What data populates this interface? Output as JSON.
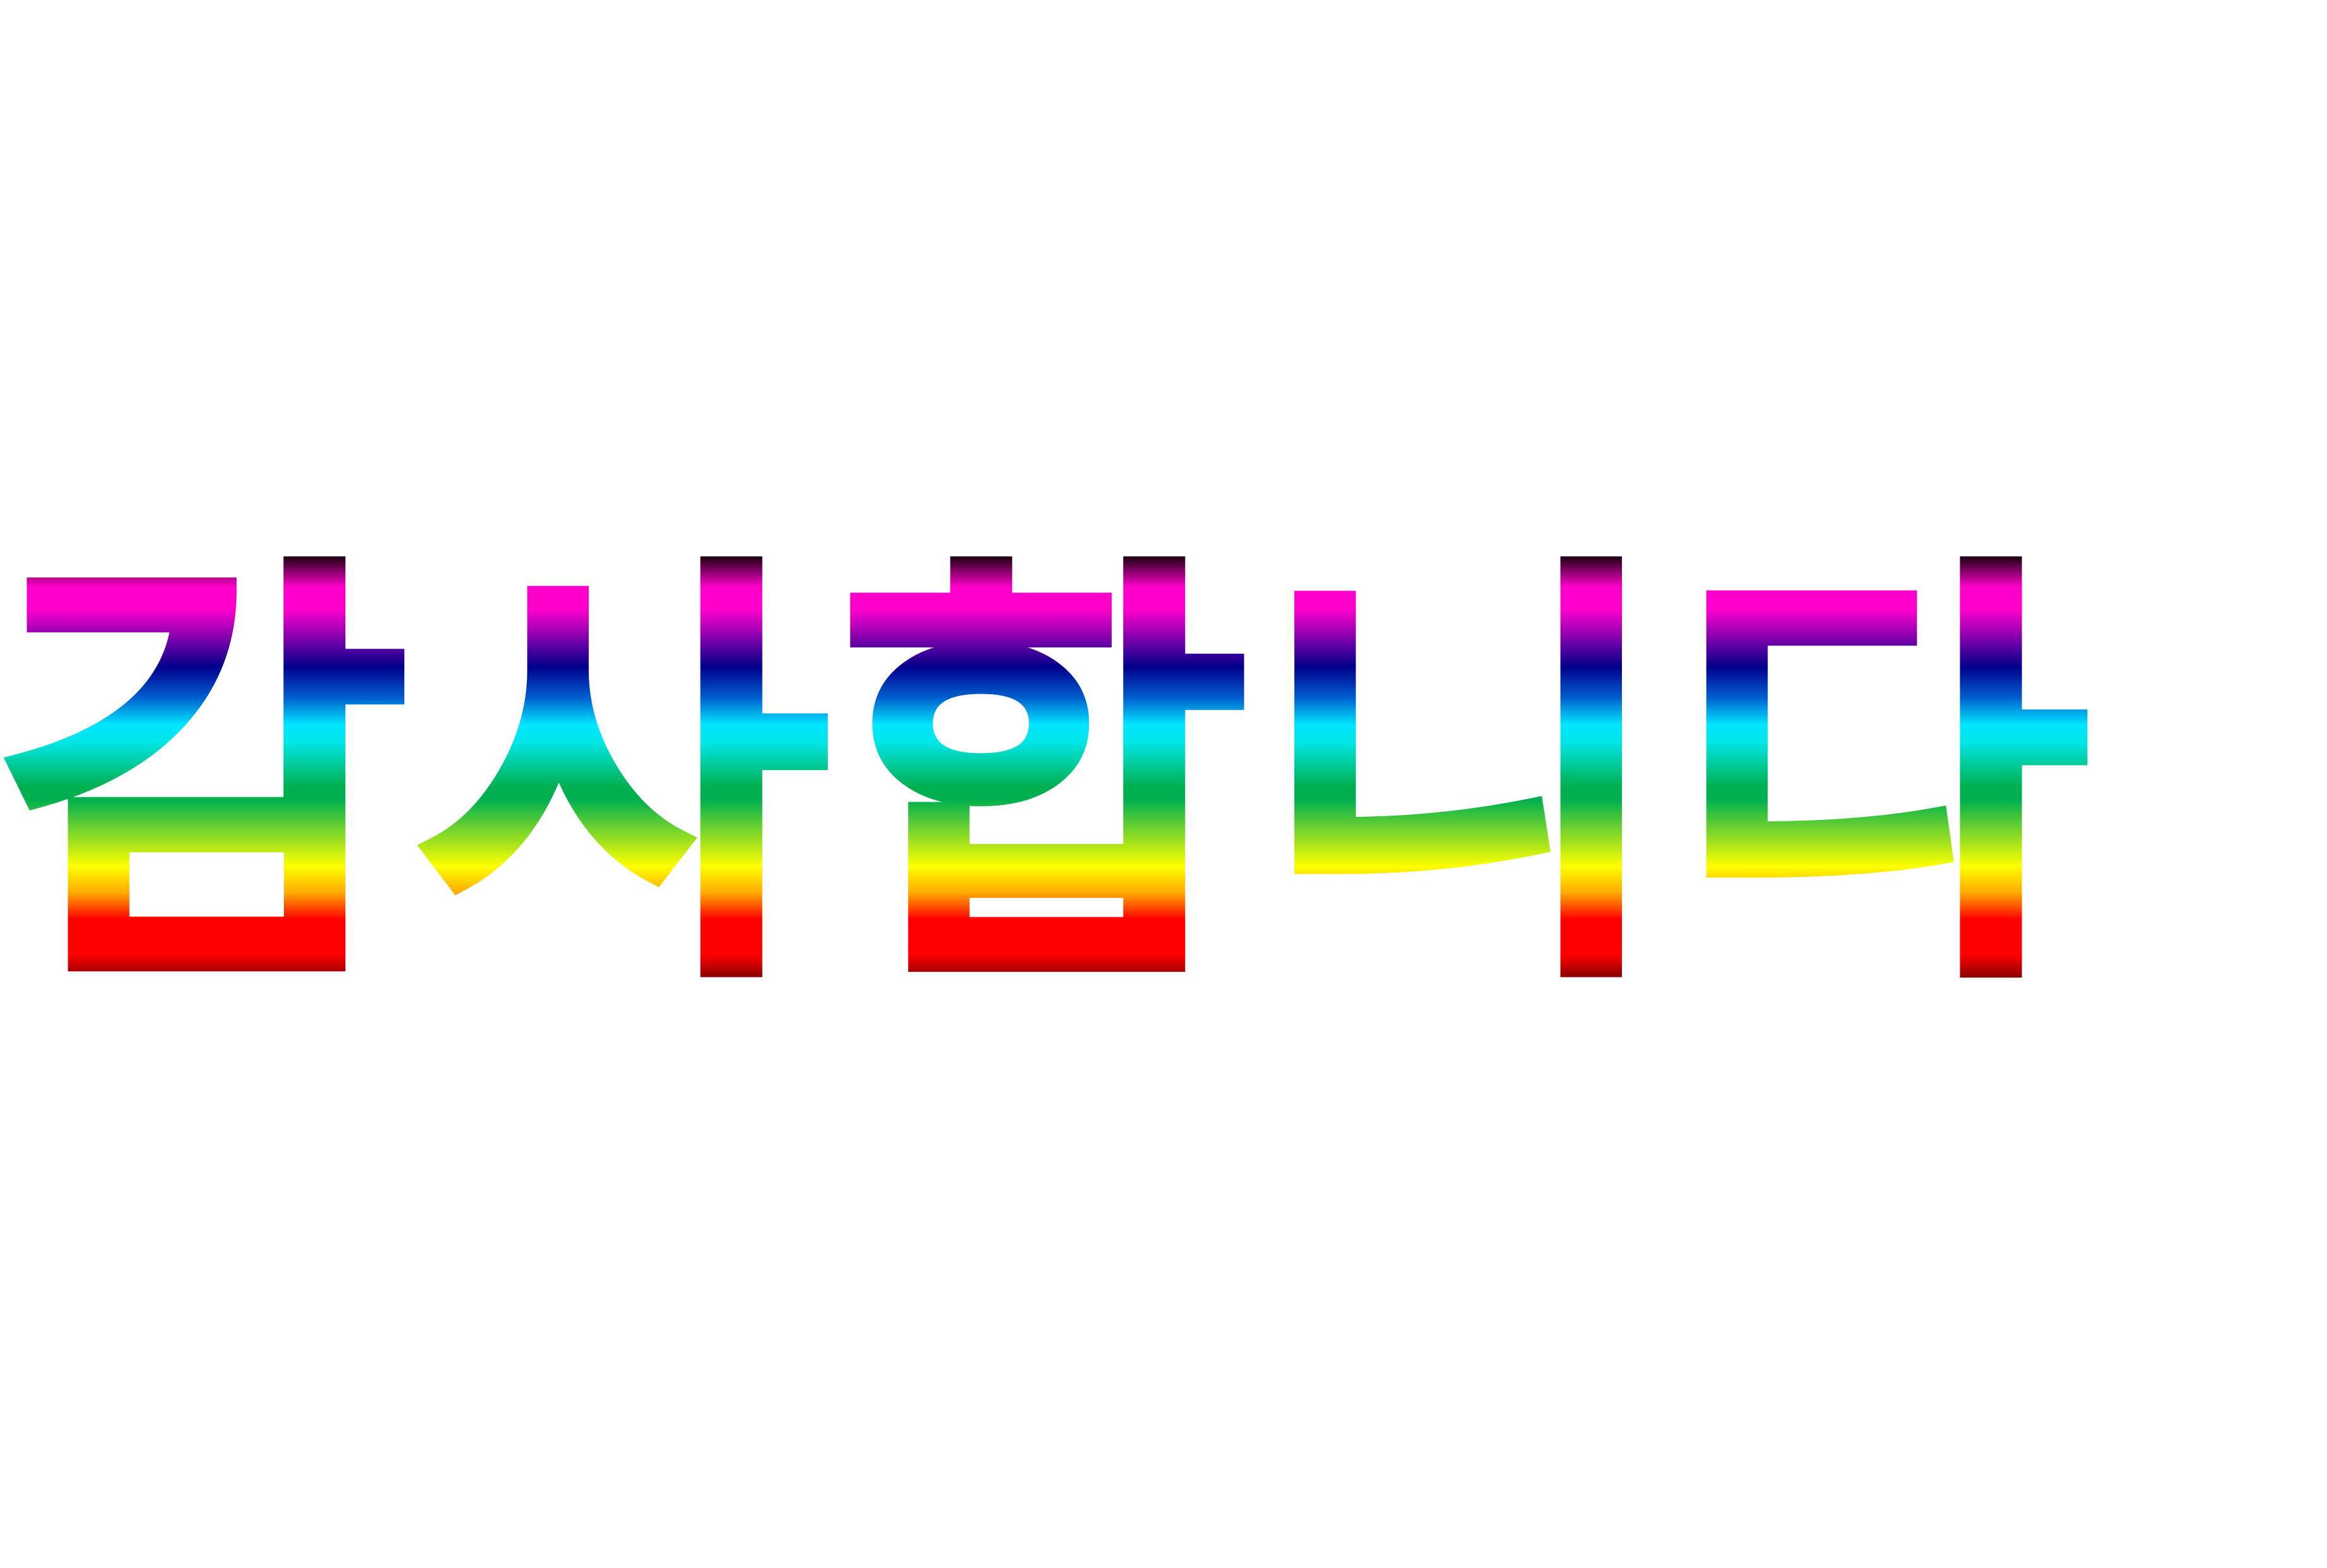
{
  "text": "감사합니다",
  "colors": {
    "background": "#ffffff",
    "gradient_stops": [
      "#1a0010",
      "#ff00cc",
      "#00008b",
      "#00e6ff",
      "#00b050",
      "#ffff00",
      "#ff0000",
      "#1a0000"
    ]
  }
}
